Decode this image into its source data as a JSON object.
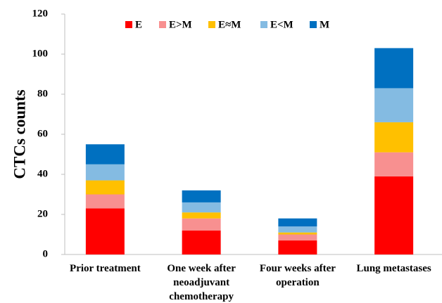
{
  "chart_data": {
    "type": "stacked_bar",
    "y_label": "CTCs counts",
    "categories": [
      "Prior treatment",
      "One week after neoadjuvant chemotherapy",
      "Four weeks after operation",
      "Lung metastases"
    ],
    "series": [
      {
        "name": "E",
        "color": "#ff0000",
        "values": [
          23,
          12,
          7,
          39
        ]
      },
      {
        "name": "E>M",
        "color": "#f89090",
        "values": [
          7,
          6,
          3,
          12
        ]
      },
      {
        "name": "E≈M",
        "color": "#ffc000",
        "values": [
          7,
          3,
          1,
          15
        ]
      },
      {
        "name": "E<M",
        "color": "#84bbe2",
        "values": [
          8,
          5,
          3,
          17
        ]
      },
      {
        "name": "M",
        "color": "#0070c0",
        "values": [
          10,
          6,
          4,
          20
        ]
      }
    ],
    "ylim": [
      0,
      120
    ],
    "yticks": [
      0,
      20,
      40,
      60,
      80,
      100,
      120
    ],
    "legend": "top",
    "grid": false
  }
}
